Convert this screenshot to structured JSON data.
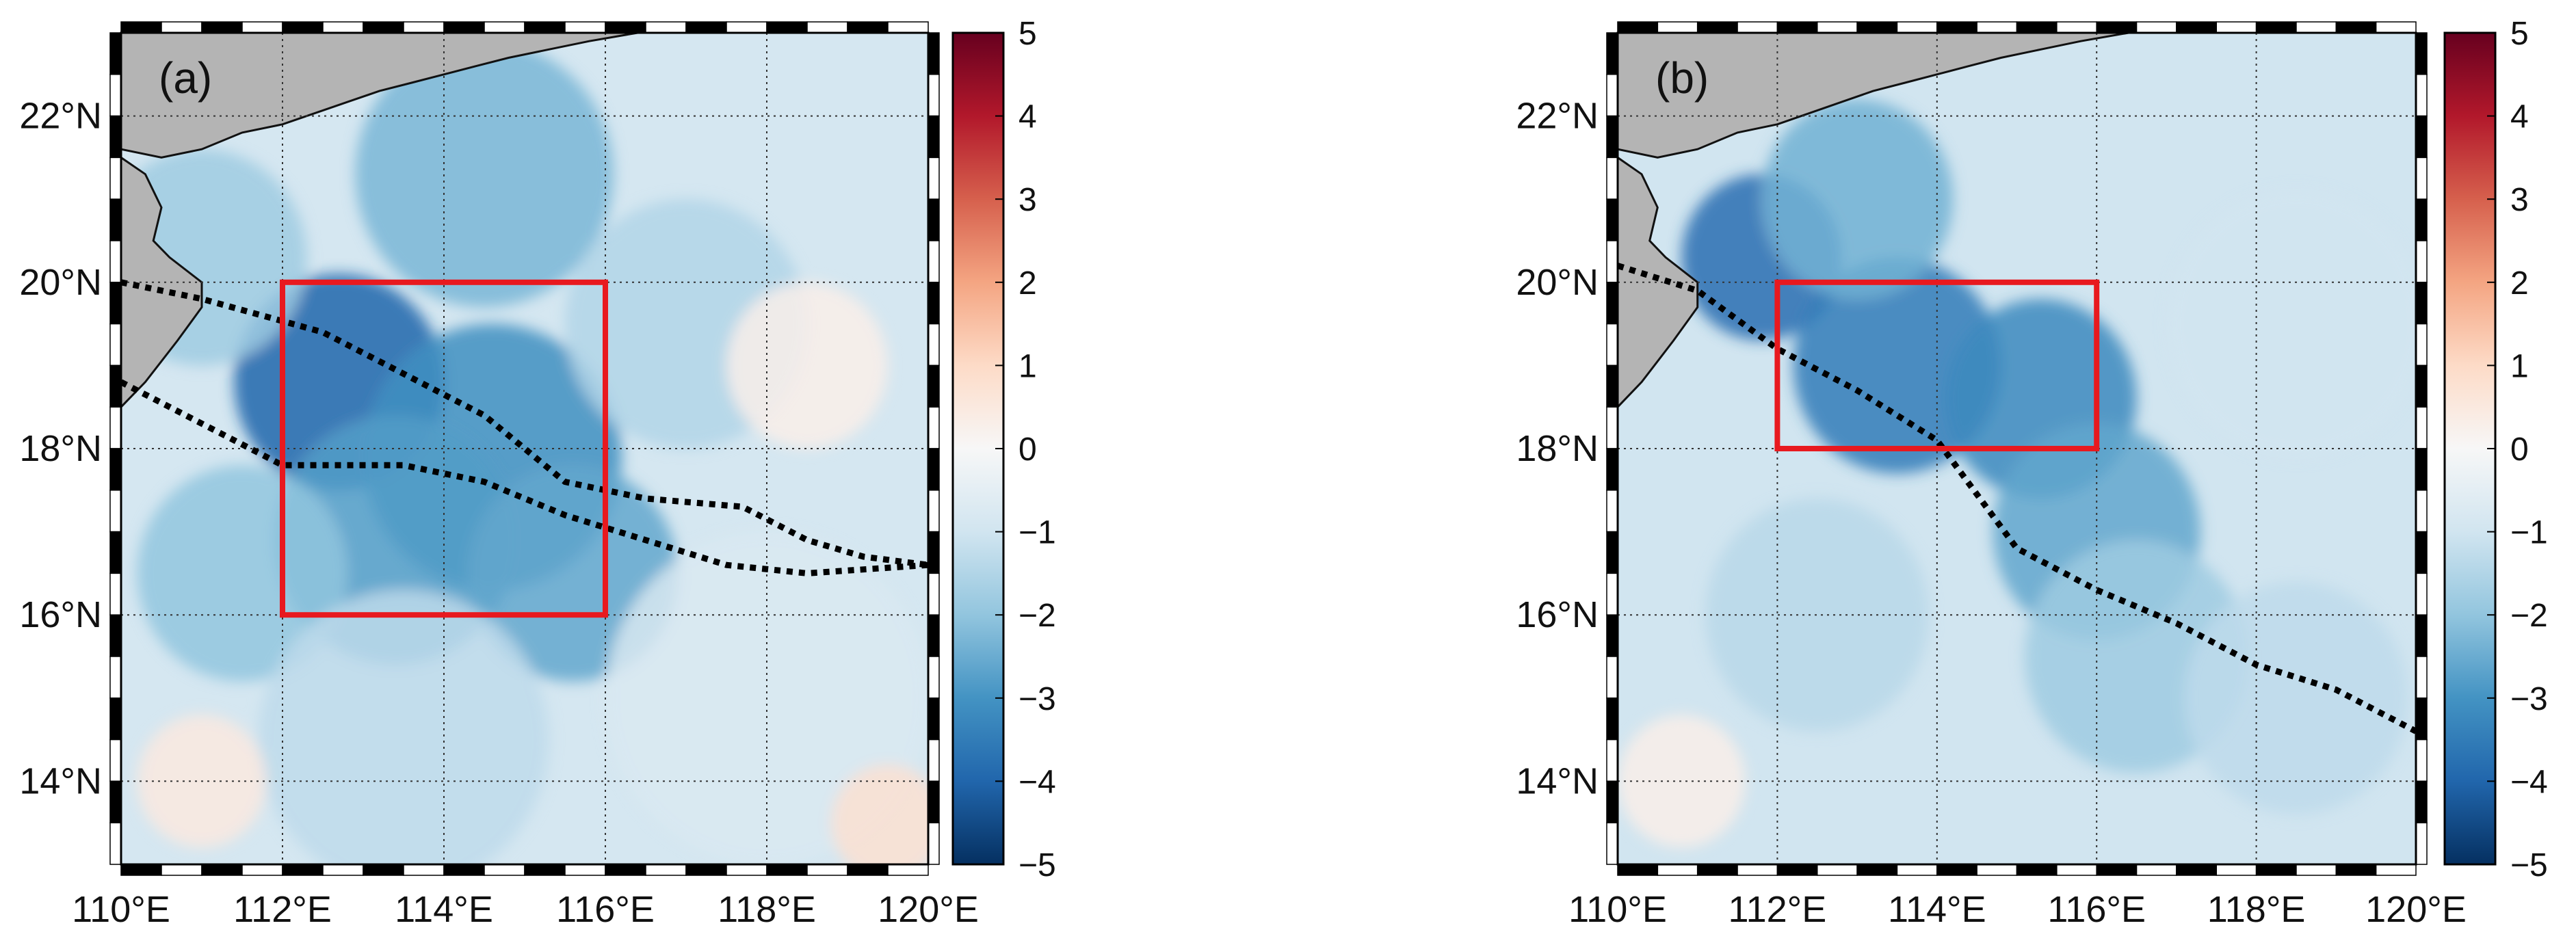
{
  "chart_data": [
    {
      "type": "heatmap",
      "panel_label": "(a)",
      "xlim": [
        110,
        120
      ],
      "ylim": [
        13,
        23
      ],
      "xticks": [
        110,
        112,
        114,
        116,
        118,
        120
      ],
      "yticks": [
        14,
        16,
        18,
        20,
        22
      ],
      "xtick_labels": [
        "110°E",
        "112°E",
        "114°E",
        "116°E",
        "118°E",
        "120°E"
      ],
      "ytick_labels": [
        "14°N",
        "16°N",
        "18°N",
        "20°N",
        "22°N"
      ],
      "grid": true,
      "colorbar": {
        "range": [
          -5,
          5
        ],
        "ticks": [
          5,
          4,
          3,
          2,
          1,
          0,
          -1,
          -2,
          -3,
          -4,
          -5
        ],
        "tick_labels": [
          "5",
          "4",
          "3",
          "2",
          "1",
          "0",
          "−1",
          "−2",
          "−3",
          "−4",
          "−5"
        ],
        "colormap": "RdBu_r"
      },
      "box": {
        "lon": [
          112,
          116
        ],
        "lat": [
          16,
          20
        ]
      },
      "tracks": [
        [
          [
            110,
            20.0
          ],
          [
            111,
            19.8
          ],
          [
            112.5,
            19.4
          ],
          [
            113.5,
            18.9
          ],
          [
            114.5,
            18.4
          ],
          [
            115.5,
            17.6
          ],
          [
            116.5,
            17.4
          ],
          [
            117.7,
            17.3
          ],
          [
            118.5,
            16.9
          ],
          [
            119.2,
            16.7
          ],
          [
            120,
            16.6
          ]
        ],
        [
          [
            110,
            18.8
          ],
          [
            111,
            18.3
          ],
          [
            112,
            17.8
          ],
          [
            113.5,
            17.8
          ],
          [
            114.5,
            17.6
          ],
          [
            115.5,
            17.2
          ],
          [
            116.5,
            16.9
          ],
          [
            117.5,
            16.6
          ],
          [
            118.5,
            16.5
          ],
          [
            120,
            16.6
          ]
        ]
      ],
      "anomalies": [
        {
          "lon": 112.7,
          "lat": 18.8,
          "value": -4.0,
          "spread": 1.3
        },
        {
          "lon": 114.6,
          "lat": 17.9,
          "value": -3.1,
          "spread": 1.6
        },
        {
          "lon": 113.4,
          "lat": 16.9,
          "value": -2.8,
          "spread": 1.5
        },
        {
          "lon": 115.6,
          "lat": 16.5,
          "value": -2.6,
          "spread": 1.3
        },
        {
          "lon": 114.5,
          "lat": 21.3,
          "value": -2.3,
          "spread": 1.6
        },
        {
          "lon": 111.0,
          "lat": 20.3,
          "value": -1.8,
          "spread": 1.3
        },
        {
          "lon": 117.0,
          "lat": 19.5,
          "value": -1.5,
          "spread": 1.5
        },
        {
          "lon": 111.5,
          "lat": 16.5,
          "value": -2.0,
          "spread": 1.3
        },
        {
          "lon": 113.5,
          "lat": 14.5,
          "value": -1.3,
          "spread": 1.8
        },
        {
          "lon": 118.0,
          "lat": 15.0,
          "value": -0.8,
          "spread": 2.0
        },
        {
          "lon": 119.5,
          "lat": 13.5,
          "value": 0.8,
          "spread": 0.7
        },
        {
          "lon": 111.0,
          "lat": 14.0,
          "value": 0.5,
          "spread": 0.8
        },
        {
          "lon": 118.5,
          "lat": 19.0,
          "value": 0.3,
          "spread": 1.0
        }
      ],
      "base_value": -0.9
    },
    {
      "type": "heatmap",
      "panel_label": "(b)",
      "xlim": [
        110,
        120
      ],
      "ylim": [
        13,
        23
      ],
      "xticks": [
        110,
        112,
        114,
        116,
        118,
        120
      ],
      "yticks": [
        14,
        16,
        18,
        20,
        22
      ],
      "xtick_labels": [
        "110°E",
        "112°E",
        "114°E",
        "116°E",
        "118°E",
        "120°E"
      ],
      "ytick_labels": [
        "14°N",
        "16°N",
        "18°N",
        "20°N",
        "22°N"
      ],
      "grid": true,
      "colorbar": {
        "range": [
          -5,
          5
        ],
        "ticks": [
          5,
          4,
          3,
          2,
          1,
          0,
          -1,
          -2,
          -3,
          -4,
          -5
        ],
        "tick_labels": [
          "5",
          "4",
          "3",
          "2",
          "1",
          "0",
          "−1",
          "−2",
          "−3",
          "−4",
          "−5"
        ],
        "colormap": "RdBu_r"
      },
      "box": {
        "lon": [
          112,
          116
        ],
        "lat": [
          18,
          20
        ]
      },
      "tracks": [
        [
          [
            110,
            20.2
          ],
          [
            111,
            19.9
          ],
          [
            112,
            19.2
          ],
          [
            113,
            18.7
          ],
          [
            114,
            18.1
          ],
          [
            115,
            16.8
          ],
          [
            116,
            16.3
          ],
          [
            117,
            15.9
          ],
          [
            118,
            15.4
          ],
          [
            119,
            15.1
          ],
          [
            120,
            14.6
          ]
        ]
      ],
      "anomalies": [
        {
          "lon": 111.8,
          "lat": 20.3,
          "value": -3.8,
          "spread": 1.0
        },
        {
          "lon": 113.5,
          "lat": 19.0,
          "value": -3.5,
          "spread": 1.3
        },
        {
          "lon": 115.3,
          "lat": 18.6,
          "value": -3.2,
          "spread": 1.2
        },
        {
          "lon": 116.0,
          "lat": 17.0,
          "value": -2.6,
          "spread": 1.3
        },
        {
          "lon": 113.0,
          "lat": 21.0,
          "value": -2.4,
          "spread": 1.2
        },
        {
          "lon": 116.5,
          "lat": 15.5,
          "value": -1.8,
          "spread": 1.4
        },
        {
          "lon": 112.5,
          "lat": 16.0,
          "value": -1.4,
          "spread": 1.4
        },
        {
          "lon": 118.5,
          "lat": 19.5,
          "value": -1.0,
          "spread": 1.6
        },
        {
          "lon": 118.5,
          "lat": 15.0,
          "value": -1.3,
          "spread": 1.4
        },
        {
          "lon": 110.8,
          "lat": 14.0,
          "value": 0.3,
          "spread": 0.8
        }
      ],
      "base_value": -1.0
    }
  ]
}
